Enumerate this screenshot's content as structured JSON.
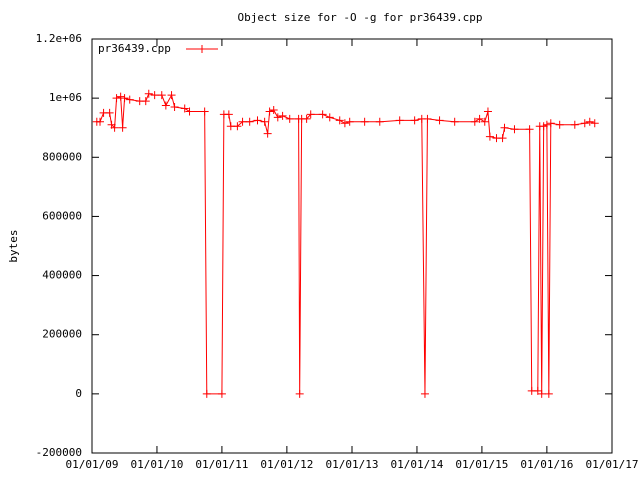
{
  "chart_data": {
    "type": "line",
    "title": "Object size for -O -g for pr36439.cpp",
    "y_label": "bytes",
    "legend": "top-left",
    "xlim": [
      "2009-01-01",
      "2017-01-01"
    ],
    "xticks": [
      {
        "value": "2009-01-01",
        "label": "01/01/09"
      },
      {
        "value": "2010-01-01",
        "label": "01/01/10"
      },
      {
        "value": "2011-01-01",
        "label": "01/01/11"
      },
      {
        "value": "2012-01-01",
        "label": "01/01/12"
      },
      {
        "value": "2013-01-01",
        "label": "01/01/13"
      },
      {
        "value": "2014-01-01",
        "label": "01/01/14"
      },
      {
        "value": "2015-01-01",
        "label": "01/01/15"
      },
      {
        "value": "2016-01-01",
        "label": "01/01/16"
      },
      {
        "value": "2017-01-01",
        "label": "01/01/17"
      }
    ],
    "ylim": [
      -200000,
      1200000
    ],
    "yticks": [
      -200000,
      0,
      200000,
      400000,
      600000,
      800000,
      {
        "value": 1000000,
        "label": "1e+06"
      },
      {
        "value": 1200000,
        "label": "1.2e+06"
      }
    ],
    "x": [
      "2009-01-28",
      "2009-02-15",
      "2009-03-07",
      "2009-04-10",
      "2009-04-21",
      "2009-05-08",
      "2009-05-19",
      "2009-06-11",
      "2009-06-22",
      "2009-07-03",
      "2009-08-01",
      "2009-09-26",
      "2009-10-30",
      "2009-11-16",
      "2009-12-19",
      "2010-01-28",
      "2010-02-20",
      "2010-03-24",
      "2010-04-10",
      "2010-06-06",
      "2010-07-03",
      "2010-09-26",
      "2010-10-08",
      "2011-01-01",
      "2011-01-12",
      "2011-02-09",
      "2011-02-20",
      "2011-03-29",
      "2011-04-27",
      "2011-06-06",
      "2011-07-20",
      "2011-08-29",
      "2011-09-15",
      "2011-09-26",
      "2011-10-19",
      "2011-11-11",
      "2011-12-08",
      "2012-01-17",
      "2012-03-07",
      "2012-03-13",
      "2012-03-24",
      "2012-04-21",
      "2012-05-14",
      "2012-07-20",
      "2012-08-29",
      "2012-10-24",
      "2012-11-22",
      "2012-12-19",
      "2013-03-13",
      "2013-06-06",
      "2013-09-26",
      "2013-12-19",
      "2014-01-28",
      "2014-02-15",
      "2014-03-01",
      "2014-05-08",
      "2014-08-01",
      "2014-11-22",
      "2014-12-19",
      "2015-01-17",
      "2015-02-04",
      "2015-02-15",
      "2015-03-24",
      "2015-04-27",
      "2015-05-08",
      "2015-07-03",
      "2015-09-26",
      "2015-10-08",
      "2015-11-11",
      "2015-11-22",
      "2015-12-03",
      "2015-12-14",
      "2016-01-01",
      "2016-01-12",
      "2016-01-23",
      "2016-03-13",
      "2016-06-06",
      "2016-08-01",
      "2016-08-29",
      "2016-09-26"
    ],
    "series": [
      {
        "name": "pr36439.cpp",
        "color": "#ff0000",
        "values": [
          920000,
          920000,
          950000,
          950000,
          910000,
          900000,
          1000000,
          1005000,
          900000,
          1000000,
          995000,
          990000,
          990000,
          1015000,
          1010000,
          1010000,
          975000,
          1010000,
          970000,
          965000,
          955000,
          955000,
          0,
          0,
          945000,
          945000,
          905000,
          905000,
          920000,
          920000,
          925000,
          920000,
          880000,
          955000,
          960000,
          935000,
          940000,
          930000,
          930000,
          0,
          930000,
          930000,
          945000,
          945000,
          935000,
          925000,
          915000,
          920000,
          920000,
          920000,
          925000,
          925000,
          930000,
          0,
          930000,
          925000,
          920000,
          920000,
          930000,
          920000,
          955000,
          870000,
          865000,
          865000,
          900000,
          895000,
          895000,
          10000,
          10000,
          905000,
          0,
          905000,
          910000,
          0,
          915000,
          910000,
          910000,
          915000,
          920000,
          915000
        ]
      }
    ]
  }
}
